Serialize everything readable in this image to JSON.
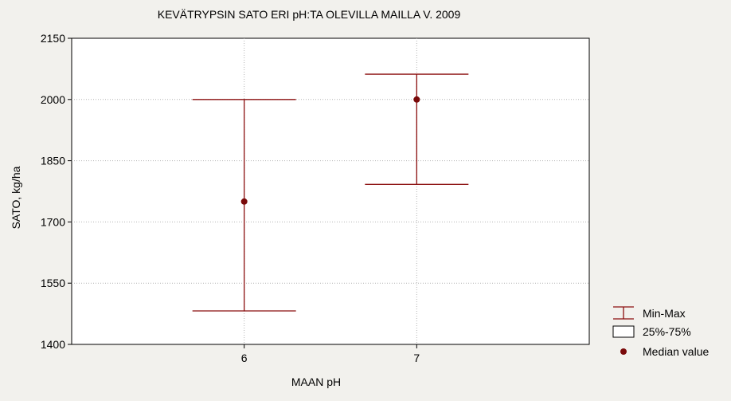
{
  "chart_data": {
    "type": "box",
    "title": "KEVÄTRYPSIN SATO ERI pH:TA OLEVILLA MAILLA V. 2009",
    "xlabel": "MAAN pH",
    "ylabel": "SATO, kg/ha",
    "categories": [
      "6",
      "7"
    ],
    "ylim": [
      1400,
      2150
    ],
    "yticks": [
      1400,
      1550,
      1700,
      1850,
      2000,
      2150
    ],
    "grid": true,
    "legend_position": "bottom-right",
    "legend": {
      "minmax_label": "Min-Max",
      "box_label": "25%-75%",
      "median_label": "Median value"
    },
    "series": [
      {
        "category": "6",
        "min": 1482,
        "max": 2000,
        "median": 1750
      },
      {
        "category": "7",
        "min": 1792,
        "max": 2062,
        "median": 2000
      }
    ],
    "colors": {
      "whisker": "#8b0f0f",
      "median": "#7a0a0a",
      "grid": "#b4b4b4",
      "background": "#f2f1ed",
      "plot": "#ffffff"
    }
  }
}
